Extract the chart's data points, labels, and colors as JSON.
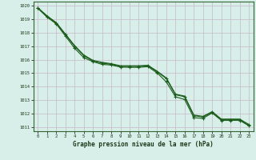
{
  "title": "Graphe pression niveau de la mer (hPa)",
  "bg_color": "#d8eee8",
  "grid_color": "#c8b8c8",
  "line_color": "#1a5c1a",
  "xlim": [
    -0.5,
    23.5
  ],
  "ylim": [
    1010.7,
    1020.3
  ],
  "yticks": [
    1011,
    1012,
    1013,
    1014,
    1015,
    1016,
    1017,
    1018,
    1019,
    1020
  ],
  "xticks": [
    0,
    1,
    2,
    3,
    4,
    5,
    6,
    7,
    8,
    9,
    10,
    11,
    12,
    13,
    14,
    15,
    16,
    17,
    18,
    19,
    20,
    21,
    22,
    23
  ],
  "series1_x": [
    0,
    1,
    2,
    3,
    4,
    5,
    6,
    7,
    8,
    9,
    10,
    11,
    12,
    13,
    14,
    15,
    16,
    17,
    18,
    19,
    20,
    21,
    22,
    23
  ],
  "series1_y": [
    1019.8,
    1019.2,
    1018.7,
    1017.85,
    1017.0,
    1016.3,
    1015.9,
    1015.75,
    1015.65,
    1015.5,
    1015.5,
    1015.5,
    1015.55,
    1015.1,
    1014.6,
    1013.4,
    1013.25,
    1011.85,
    1011.75,
    1012.1,
    1011.55,
    1011.55,
    1011.55,
    1011.15
  ],
  "series2_x": [
    0,
    1,
    2,
    3,
    4,
    5,
    6,
    7,
    8,
    9,
    10,
    11,
    12,
    13,
    14,
    15,
    16,
    17,
    18,
    19,
    20,
    21,
    22,
    23
  ],
  "series2_y": [
    1019.85,
    1019.25,
    1018.75,
    1017.9,
    1017.05,
    1016.35,
    1015.95,
    1015.8,
    1015.7,
    1015.55,
    1015.55,
    1015.55,
    1015.58,
    1015.15,
    1014.65,
    1013.45,
    1013.3,
    1011.9,
    1011.8,
    1012.15,
    1011.6,
    1011.6,
    1011.6,
    1011.2
  ],
  "series3_x": [
    0,
    1,
    2,
    3,
    4,
    5,
    6,
    7,
    8,
    9,
    10,
    11,
    12,
    13,
    14,
    15,
    16,
    17,
    18,
    19,
    20,
    21,
    22,
    23
  ],
  "series3_y": [
    1019.8,
    1019.15,
    1018.65,
    1017.75,
    1016.85,
    1016.15,
    1015.85,
    1015.65,
    1015.6,
    1015.45,
    1015.43,
    1015.43,
    1015.48,
    1015.02,
    1014.35,
    1013.25,
    1013.05,
    1011.7,
    1011.65,
    1012.05,
    1011.5,
    1011.5,
    1011.5,
    1011.1
  ]
}
